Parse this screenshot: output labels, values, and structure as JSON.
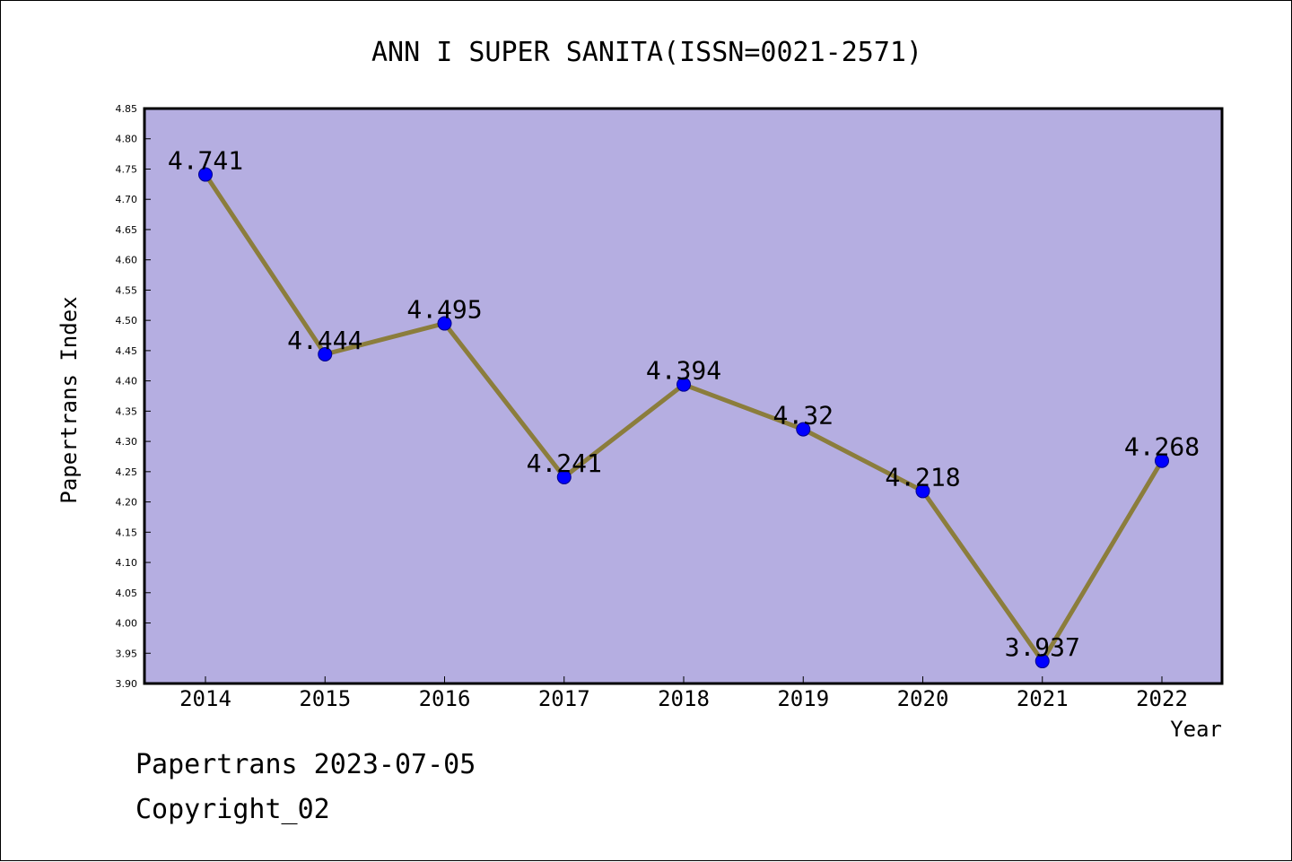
{
  "chart_data": {
    "type": "line",
    "title": "ANN I SUPER SANITA(ISSN=0021-2571)",
    "xlabel": "Year",
    "ylabel": "Papertrans Index",
    "categories": [
      "2014",
      "2015",
      "2016",
      "2017",
      "2018",
      "2019",
      "2020",
      "2021",
      "2022"
    ],
    "series": [
      {
        "values": [
          4.741,
          4.444,
          4.495,
          4.241,
          4.394,
          4.32,
          4.218,
          3.937,
          4.268
        ],
        "value_labels": [
          "4.741",
          "4.444",
          "4.495",
          "4.241",
          "4.394",
          "4.32",
          "4.218",
          "3.937",
          "4.268"
        ]
      }
    ],
    "ylim": [
      3.9,
      4.85
    ],
    "yticks": [
      "3.90",
      "3.95",
      "4.00",
      "4.05",
      "4.10",
      "4.15",
      "4.20",
      "4.25",
      "4.30",
      "4.35",
      "4.40",
      "4.45",
      "4.50",
      "4.55",
      "4.60",
      "4.65",
      "4.70",
      "4.75",
      "4.80",
      "4.85"
    ],
    "grid": false,
    "colors": {
      "plot_background": "#b5aee1",
      "line": "#8b7d3c",
      "marker": "#0000ff",
      "marker_edge": "#00008b"
    }
  },
  "footer": {
    "line1": "Papertrans 2023-07-05",
    "line2": "Copyright_02"
  }
}
